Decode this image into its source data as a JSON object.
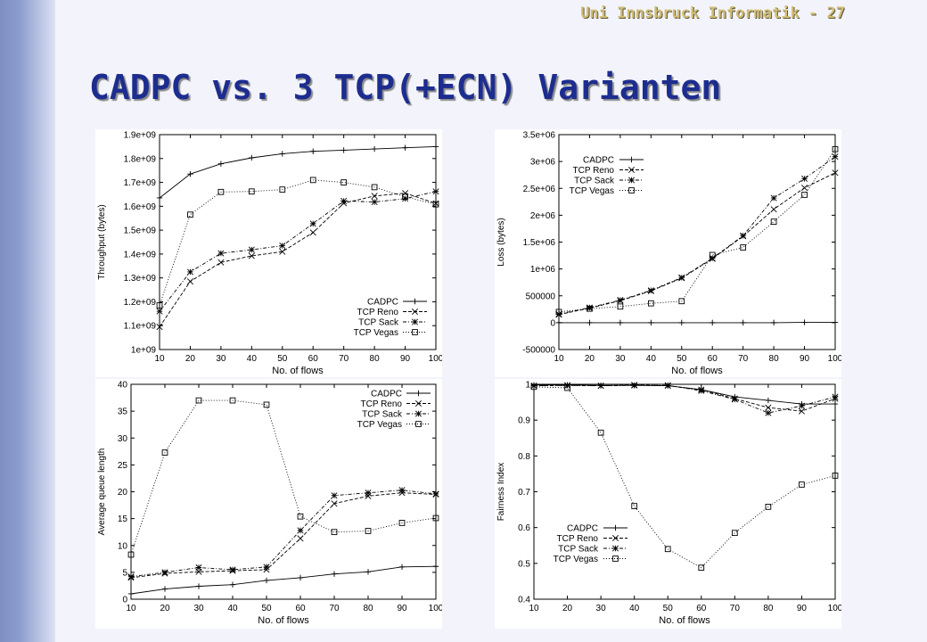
{
  "slide": {
    "header": "Uni Innsbruck Informatik - 27",
    "title": "CADPC vs. 3 TCP(+ECN) Varianten"
  },
  "chart_data": [
    {
      "type": "line",
      "xlabel": "No. of flows",
      "ylabel": "Throughput (bytes)",
      "x": [
        10,
        20,
        30,
        40,
        50,
        60,
        70,
        80,
        90,
        100
      ],
      "xlim": [
        10,
        100
      ],
      "ylim": [
        1000000000,
        1900000000
      ],
      "yticks": [
        1000000000,
        1100000000,
        1200000000,
        1300000000,
        1400000000,
        1500000000,
        1600000000,
        1700000000,
        1800000000,
        1900000000
      ],
      "ytick_labels": [
        "1e+09",
        "1.1e+09",
        "1.2e+09",
        "1.3e+09",
        "1.4e+09",
        "1.5e+09",
        "1.6e+09",
        "1.7e+09",
        "1.8e+09",
        "1.9e+09"
      ],
      "legend_position": "bottom-right",
      "series": [
        {
          "name": "CADPC",
          "marker": "plus",
          "dash": "solid",
          "values": [
            1635000000,
            1735000000,
            1778000000,
            1803000000,
            1820000000,
            1830000000,
            1835000000,
            1840000000,
            1845000000,
            1850000000
          ]
        },
        {
          "name": "TCP Reno",
          "marker": "cross",
          "dash": "dashed",
          "values": [
            1095000000,
            1285000000,
            1365000000,
            1392000000,
            1410000000,
            1490000000,
            1613000000,
            1643000000,
            1655000000,
            1612000000
          ]
        },
        {
          "name": "TCP Sack",
          "marker": "star",
          "dash": "dashdot",
          "values": [
            1160000000,
            1325000000,
            1403000000,
            1418000000,
            1435000000,
            1527000000,
            1622000000,
            1618000000,
            1632000000,
            1662000000
          ]
        },
        {
          "name": "TCP Vegas",
          "marker": "square",
          "dash": "dotted",
          "values": [
            1185000000,
            1565000000,
            1660000000,
            1662000000,
            1670000000,
            1710000000,
            1700000000,
            1680000000,
            1640000000,
            1608000000
          ]
        }
      ]
    },
    {
      "type": "line",
      "xlabel": "No. of flows",
      "ylabel": "Loss (bytes)",
      "x": [
        10,
        20,
        30,
        40,
        50,
        60,
        70,
        80,
        90,
        100
      ],
      "xlim": [
        10,
        100
      ],
      "ylim": [
        -500000,
        3500000
      ],
      "yticks": [
        -500000,
        0,
        500000,
        1000000,
        1500000,
        2000000,
        2500000,
        3000000,
        3500000
      ],
      "ytick_labels": [
        "-500000",
        "0",
        "500000",
        "1e+06",
        "1.5e+06",
        "2e+06",
        "2.5e+06",
        "3e+06",
        "3.5e+06"
      ],
      "legend_position": "top-left",
      "series": [
        {
          "name": "CADPC",
          "marker": "plus",
          "dash": "solid",
          "values": [
            0,
            0,
            0,
            0,
            0,
            0,
            0,
            0,
            5000,
            5000
          ]
        },
        {
          "name": "TCP Reno",
          "marker": "cross",
          "dash": "dashed",
          "values": [
            150000,
            270000,
            410000,
            590000,
            830000,
            1190000,
            1610000,
            2110000,
            2510000,
            2790000
          ]
        },
        {
          "name": "TCP Sack",
          "marker": "star",
          "dash": "dashdot",
          "values": [
            160000,
            280000,
            420000,
            600000,
            840000,
            1200000,
            1620000,
            2320000,
            2680000,
            3090000
          ]
        },
        {
          "name": "TCP Vegas",
          "marker": "square",
          "dash": "dotted",
          "values": [
            200000,
            260000,
            300000,
            360000,
            400000,
            1260000,
            1400000,
            1880000,
            2380000,
            3230000
          ]
        }
      ]
    },
    {
      "type": "line",
      "xlabel": "No. of flows",
      "ylabel": "Average queue length",
      "x": [
        10,
        20,
        30,
        40,
        50,
        60,
        70,
        80,
        90,
        100
      ],
      "xlim": [
        10,
        100
      ],
      "ylim": [
        0,
        40
      ],
      "yticks": [
        0,
        5,
        10,
        15,
        20,
        25,
        30,
        35,
        40
      ],
      "ytick_labels": [
        "0",
        "5",
        "10",
        "15",
        "20",
        "25",
        "30",
        "35",
        "40"
      ],
      "legend_position": "top-right",
      "series": [
        {
          "name": "CADPC",
          "marker": "plus",
          "dash": "solid",
          "values": [
            1.0,
            1.9,
            2.4,
            2.7,
            3.5,
            4.0,
            4.7,
            5.1,
            6.0,
            6.1
          ]
        },
        {
          "name": "TCP Reno",
          "marker": "cross",
          "dash": "dashed",
          "values": [
            4.0,
            4.8,
            5.1,
            5.3,
            5.5,
            11.3,
            17.8,
            19.2,
            19.8,
            19.5
          ]
        },
        {
          "name": "TCP Sack",
          "marker": "star",
          "dash": "dashdot",
          "values": [
            4.2,
            5.0,
            5.9,
            5.5,
            6.0,
            12.8,
            19.3,
            19.8,
            20.3,
            19.6
          ]
        },
        {
          "name": "TCP Vegas",
          "marker": "square",
          "dash": "dotted",
          "values": [
            8.3,
            27.3,
            37.0,
            37.0,
            36.2,
            15.4,
            12.5,
            12.7,
            14.2,
            15.1
          ]
        }
      ]
    },
    {
      "type": "line",
      "xlabel": "No. of flows",
      "ylabel": "Fairness Index",
      "x": [
        10,
        20,
        30,
        40,
        50,
        60,
        70,
        80,
        90,
        100
      ],
      "xlim": [
        10,
        100
      ],
      "ylim": [
        0.4,
        1.0
      ],
      "yticks": [
        0.4,
        0.5,
        0.6,
        0.7,
        0.8,
        0.9,
        1.0
      ],
      "ytick_labels": [
        "0.4",
        "0.5",
        "0.6",
        "0.7",
        "0.8",
        "0.9",
        "1"
      ],
      "legend_position": "bottom-left",
      "series": [
        {
          "name": "CADPC",
          "marker": "plus",
          "dash": "solid",
          "values": [
            0.998,
            0.998,
            0.997,
            0.997,
            0.996,
            0.985,
            0.965,
            0.955,
            0.945,
            0.945
          ]
        },
        {
          "name": "TCP Reno",
          "marker": "cross",
          "dash": "dashed",
          "values": [
            0.996,
            0.997,
            0.996,
            0.998,
            0.996,
            0.985,
            0.96,
            0.935,
            0.925,
            0.96
          ]
        },
        {
          "name": "TCP Sack",
          "marker": "star",
          "dash": "dashdot",
          "values": [
            0.996,
            0.997,
            0.996,
            0.997,
            0.997,
            0.982,
            0.958,
            0.92,
            0.94,
            0.965
          ]
        },
        {
          "name": "TCP Vegas",
          "marker": "square",
          "dash": "dotted",
          "values": [
            0.993,
            0.99,
            0.865,
            0.66,
            0.54,
            0.488,
            0.585,
            0.658,
            0.72,
            0.745
          ]
        }
      ]
    }
  ]
}
